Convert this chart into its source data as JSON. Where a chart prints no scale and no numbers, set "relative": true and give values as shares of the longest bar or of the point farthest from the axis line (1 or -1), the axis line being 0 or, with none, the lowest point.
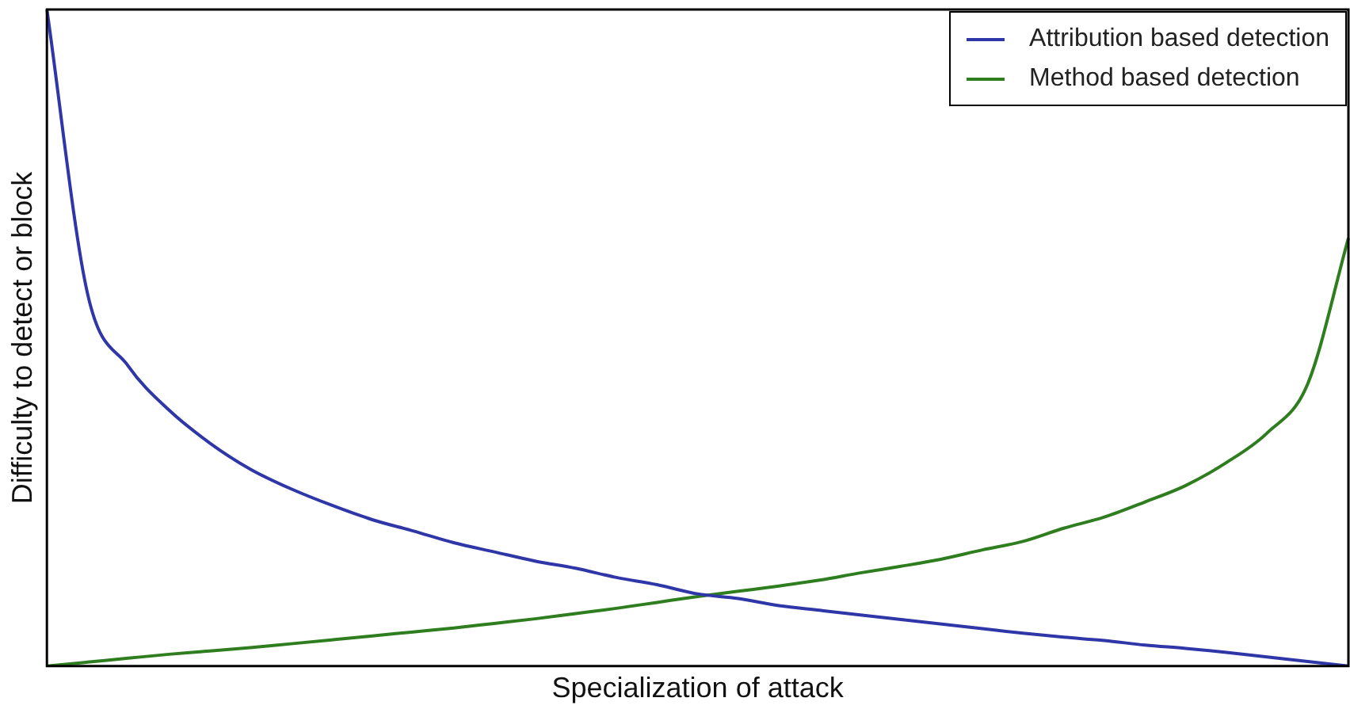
{
  "chart_data": {
    "type": "line",
    "relative": true,
    "xlabel": "Specialization of attack",
    "ylabel": "Difficulty to detect or block",
    "categories": [
      null,
      null,
      null,
      null,
      null,
      null,
      null,
      null,
      null,
      null,
      null,
      null,
      null,
      null,
      null,
      null,
      null,
      null,
      null,
      null,
      null,
      null,
      null,
      null,
      null,
      null,
      null,
      null,
      null,
      null,
      null,
      null,
      null
    ],
    "series": [
      {
        "name": "Attribution based detection",
        "color": "#2f36a8",
        "values": [
          1.0,
          0.567,
          0.457,
          0.39,
          0.34,
          0.3,
          0.27,
          0.245,
          0.223,
          0.206,
          0.188,
          0.174,
          0.16,
          0.149,
          0.135,
          0.124,
          0.11,
          0.103,
          0.092,
          0.085,
          0.078,
          0.071,
          0.064,
          0.057,
          0.05,
          0.044,
          0.039,
          0.032,
          0.027,
          0.021,
          0.014,
          0.007,
          0
        ]
      },
      {
        "name": "Method based detection",
        "color": "#2e7d1e",
        "values": [
          0,
          0.006,
          0.012,
          0.018,
          0.023,
          0.028,
          0.034,
          0.04,
          0.046,
          0.052,
          0.058,
          0.065,
          0.072,
          0.08,
          0.088,
          0.097,
          0.106,
          0.114,
          0.122,
          0.131,
          0.142,
          0.152,
          0.163,
          0.177,
          0.19,
          0.21,
          0.227,
          0.25,
          0.275,
          0.31,
          0.355,
          0.43,
          0.652
        ]
      }
    ],
    "legend": "top right",
    "grid": false,
    "marker": "none",
    "line_style": "solid"
  }
}
